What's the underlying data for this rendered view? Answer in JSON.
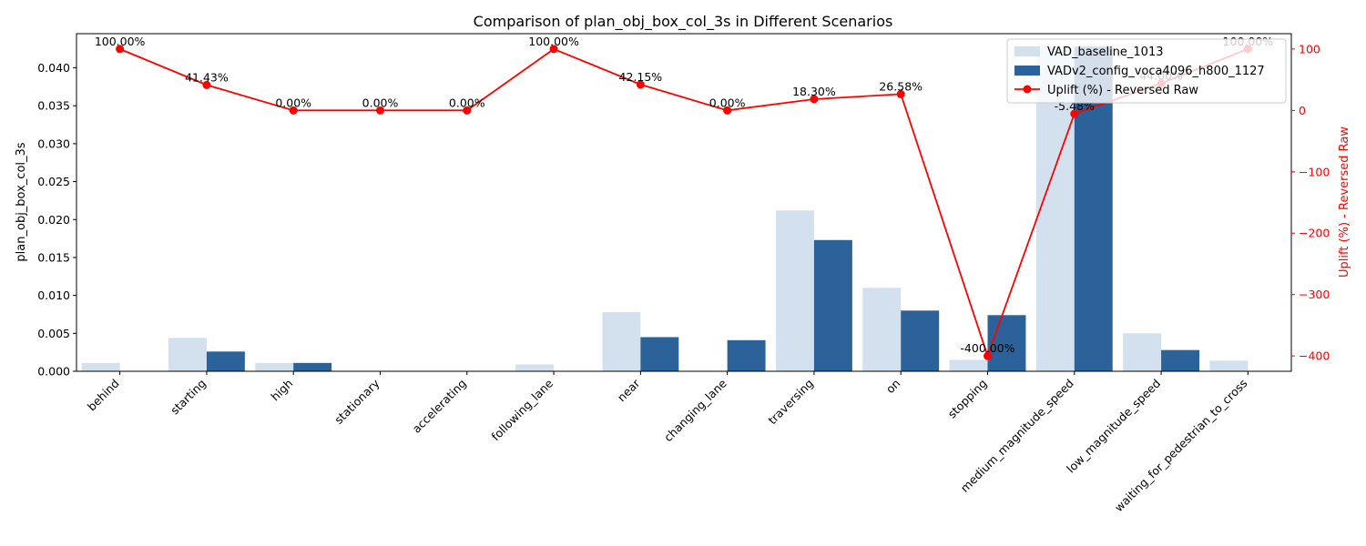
{
  "chart_data": {
    "type": "bar",
    "title": "Comparison of plan_obj_box_col_3s in Different Scenarios",
    "ylabel": "plan_obj_box_col_3s",
    "y2label": "Uplift (%) - Reversed Raw",
    "ylim": [
      0,
      0.0445
    ],
    "y2lim": [
      -425,
      125
    ],
    "yticks": [
      "0.000",
      "0.005",
      "0.010",
      "0.015",
      "0.020",
      "0.025",
      "0.030",
      "0.035",
      "0.040"
    ],
    "y2ticks": [
      "100",
      "0",
      "−100",
      "−200",
      "−300",
      "−400"
    ],
    "legend_position": "top-right",
    "categories": [
      "behind",
      "starting",
      "high",
      "stationary",
      "accelerating",
      "following_lane",
      "near",
      "changing_lane",
      "traversing",
      "on",
      "stopping",
      "medium_magnitude_speed",
      "low_magnitude_speed",
      "waiting_for_pedestrian_to_cross"
    ],
    "series": [
      {
        "name": "VAD_baseline_1013",
        "color": "#d3e0ee",
        "values": [
          0.0011,
          0.0044,
          0.0011,
          0.0,
          0.0,
          0.0009,
          0.0078,
          0.0,
          0.0212,
          0.011,
          0.0015,
          0.0428,
          0.005,
          0.0014
        ]
      },
      {
        "name": "VADv2_config_voca4096_h800_1127",
        "color": "#2b6299",
        "values": [
          0.0,
          0.0026,
          0.0011,
          0.0,
          0.0,
          0.0,
          0.0045,
          0.0041,
          0.0173,
          0.008,
          0.0074,
          0.0428,
          0.0028,
          0.0
        ]
      }
    ],
    "line": {
      "name": "Uplift (%) - Reversed Raw",
      "color": "#ff0000",
      "values": [
        100.0,
        41.43,
        0.0,
        0.0,
        0.0,
        100.0,
        42.15,
        0.0,
        18.3,
        26.58,
        -400.0,
        -5.48,
        44.0,
        100.0
      ],
      "labels": [
        "100.00%",
        "41.43%",
        "0.00%",
        "0.00%",
        "0.00%",
        "100.00%",
        "42.15%",
        "0.00%",
        "18.30%",
        "26.58%",
        "-400.00%",
        "-5.48%",
        "44.00%",
        "100.00%"
      ]
    }
  }
}
